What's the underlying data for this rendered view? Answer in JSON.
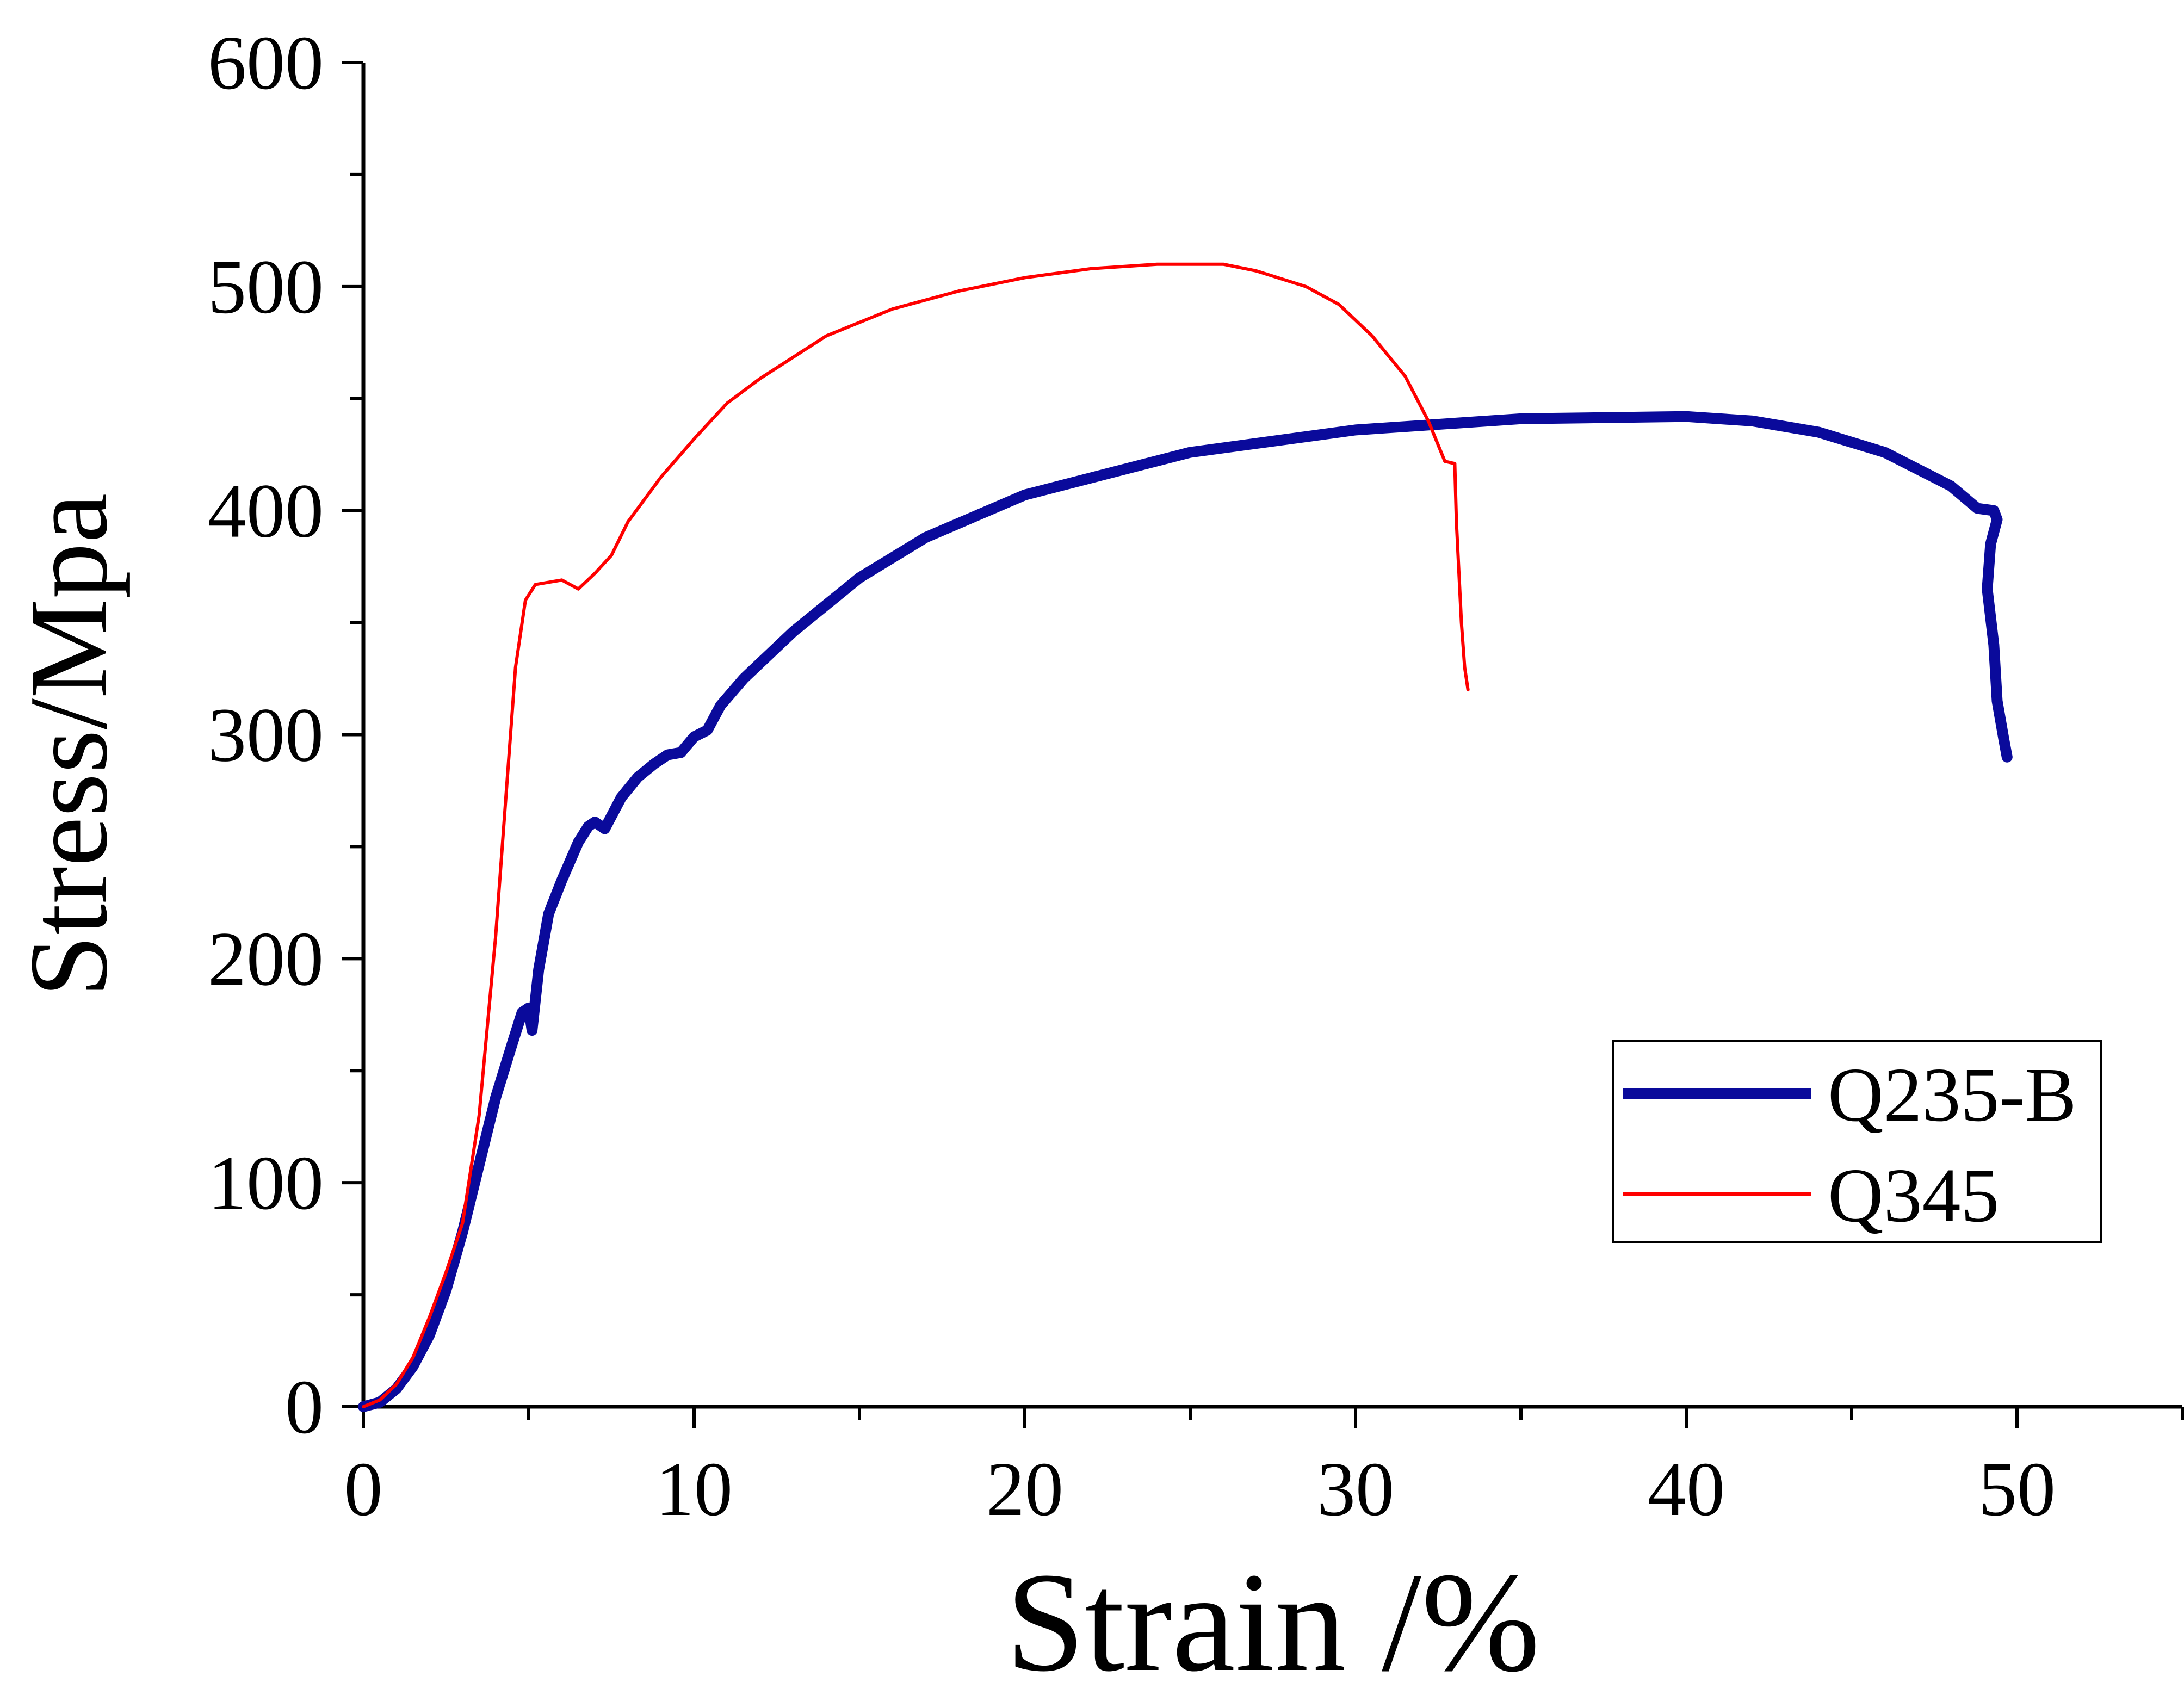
{
  "chart_data": {
    "type": "line",
    "xlabel": "Strain /%",
    "ylabel": "Stress/Mpa",
    "xlim": [
      0,
      55
    ],
    "ylim": [
      0,
      600
    ],
    "x_ticks": [
      0,
      10,
      20,
      30,
      40,
      50
    ],
    "x_minor_step": 5,
    "y_ticks": [
      0,
      100,
      200,
      300,
      400,
      500,
      600
    ],
    "y_minor_step": 50,
    "grid": false,
    "legend_position": "bottom-right",
    "series": [
      {
        "name": "Q235-B",
        "color": "#0a0a9b",
        "points": [
          [
            0,
            0
          ],
          [
            0.5,
            2
          ],
          [
            1,
            8
          ],
          [
            1.5,
            18
          ],
          [
            2,
            32
          ],
          [
            2.5,
            52
          ],
          [
            3,
            78
          ],
          [
            3.5,
            108
          ],
          [
            4,
            138
          ],
          [
            4.5,
            162
          ],
          [
            4.8,
            176
          ],
          [
            5.0,
            178
          ],
          [
            5.1,
            168
          ],
          [
            5.3,
            195
          ],
          [
            5.6,
            220
          ],
          [
            6,
            235
          ],
          [
            6.5,
            252
          ],
          [
            6.8,
            259
          ],
          [
            7.0,
            261
          ],
          [
            7.3,
            258
          ],
          [
            7.8,
            272
          ],
          [
            8.3,
            281
          ],
          [
            8.8,
            287
          ],
          [
            9.2,
            291
          ],
          [
            9.6,
            292
          ],
          [
            10.0,
            299
          ],
          [
            10.4,
            302
          ],
          [
            10.8,
            313
          ],
          [
            11.5,
            325
          ],
          [
            13,
            346
          ],
          [
            15,
            370
          ],
          [
            17,
            388
          ],
          [
            20,
            407
          ],
          [
            25,
            426
          ],
          [
            30,
            436
          ],
          [
            35,
            441
          ],
          [
            40,
            442
          ],
          [
            42,
            440
          ],
          [
            44,
            435
          ],
          [
            46,
            426
          ],
          [
            48,
            411
          ],
          [
            48.8,
            401
          ],
          [
            49.3,
            400
          ],
          [
            49.4,
            396
          ],
          [
            49.2,
            385
          ],
          [
            49.1,
            365
          ],
          [
            49.3,
            340
          ],
          [
            49.4,
            315
          ],
          [
            49.6,
            298
          ],
          [
            49.7,
            290
          ]
        ]
      },
      {
        "name": "Q345",
        "color": "#ff0000",
        "points": [
          [
            0,
            0
          ],
          [
            0.5,
            3
          ],
          [
            1,
            10
          ],
          [
            1.5,
            22
          ],
          [
            2,
            40
          ],
          [
            2.5,
            60
          ],
          [
            3,
            82
          ],
          [
            3.5,
            130
          ],
          [
            4,
            210
          ],
          [
            4.3,
            270
          ],
          [
            4.6,
            330
          ],
          [
            4.9,
            360
          ],
          [
            5.2,
            367
          ],
          [
            6,
            369
          ],
          [
            6.5,
            365
          ],
          [
            7,
            372
          ],
          [
            7.5,
            380
          ],
          [
            8,
            395
          ],
          [
            9,
            415
          ],
          [
            10,
            432
          ],
          [
            11,
            448
          ],
          [
            12,
            459
          ],
          [
            14,
            478
          ],
          [
            16,
            490
          ],
          [
            18,
            498
          ],
          [
            20,
            504
          ],
          [
            22,
            508
          ],
          [
            24,
            510
          ],
          [
            26,
            510
          ],
          [
            27,
            507
          ],
          [
            28.5,
            500
          ],
          [
            29.5,
            492
          ],
          [
            30.5,
            478
          ],
          [
            31.5,
            460
          ],
          [
            32.2,
            440
          ],
          [
            32.7,
            422
          ],
          [
            33,
            421
          ],
          [
            33.05,
            395
          ],
          [
            33.2,
            350
          ],
          [
            33.3,
            330
          ],
          [
            33.4,
            320
          ]
        ]
      }
    ]
  }
}
